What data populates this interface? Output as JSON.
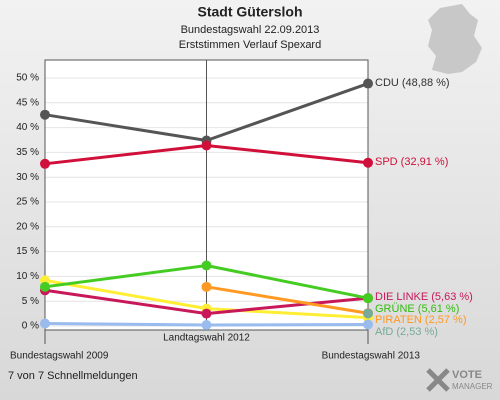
{
  "chart_data": {
    "type": "line",
    "title": "Stadt Gütersloh",
    "subtitle": "Bundestagswahl 22.09.2013",
    "subtitle2": "Erststimmen Verlauf Spexard",
    "footer": "7 von 7 Schnellmeldungen",
    "logo": [
      "VOTE",
      "MANAGER"
    ],
    "categories": [
      "Bundestagswahl 2009",
      "Landtagswahl 2012",
      "Bundestagswahl 2013"
    ],
    "ylim": [
      0,
      50
    ],
    "yticks": [
      {
        "value": 0,
        "label": "0 %"
      },
      {
        "value": 5,
        "label": "5 %"
      },
      {
        "value": 10,
        "label": "10 %"
      },
      {
        "value": 15,
        "label": "15 %"
      },
      {
        "value": 20,
        "label": "20 %"
      },
      {
        "value": 25,
        "label": "25 %"
      },
      {
        "value": 30,
        "label": "30 %"
      },
      {
        "value": 35,
        "label": "35 %"
      },
      {
        "value": 40,
        "label": "40 %"
      },
      {
        "value": 45,
        "label": "45 %"
      },
      {
        "value": 50,
        "label": "50 %"
      }
    ],
    "grid": true,
    "series": [
      {
        "name": "CDU",
        "label": "CDU (48,88 %)",
        "color": "#555555",
        "label_color": "#333333",
        "values": [
          42.6,
          37.4,
          48.88
        ]
      },
      {
        "name": "SPD",
        "label": "SPD (32,91 %)",
        "color": "#d0103a",
        "label_color": "#d0103a",
        "values": [
          32.7,
          36.4,
          32.91
        ]
      },
      {
        "name": null,
        "label": null,
        "color": "#ffee33",
        "label_color": null,
        "values": [
          9.2,
          3.5,
          1.7
        ]
      },
      {
        "name": "DIE LINKE",
        "label": "DIE LINKE (5,63 %)",
        "color": "#c8185a",
        "label_color": "#c8185a",
        "values": [
          7.2,
          2.5,
          5.63
        ]
      },
      {
        "name": "GRÜNE",
        "label": "GRÜNE (5,61 %)",
        "color": "#44cc22",
        "label_color": "#33bb11",
        "values": [
          7.9,
          12.2,
          5.61
        ]
      },
      {
        "name": "PIRATEN",
        "label": "PIRATEN (2,57 %)",
        "color": "#ff9922",
        "label_color": "#ff9922",
        "values": [
          null,
          7.9,
          2.57
        ]
      },
      {
        "name": "AfD",
        "label": "AfD (2,53 %)",
        "color": "#77aa99",
        "label_color": "#77aa99",
        "values": [
          null,
          null,
          2.53
        ]
      },
      {
        "name": null,
        "label": null,
        "color": "#99bbee",
        "label_color": null,
        "values": [
          0.5,
          0.2,
          0.3
        ]
      }
    ]
  }
}
